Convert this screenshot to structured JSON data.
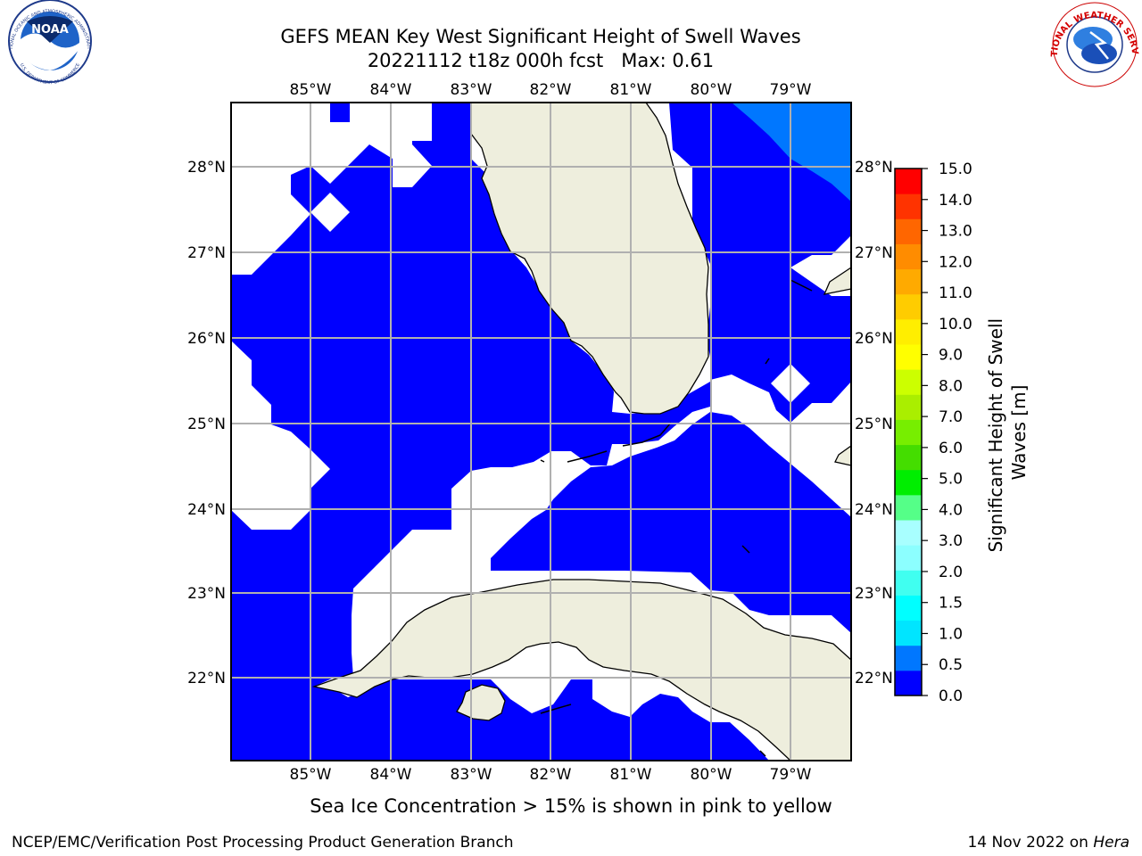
{
  "title": {
    "line1": "GEFS MEAN Key West Significant Height of Swell Waves",
    "line2": "20221112 t18z 000h fcst   Max: 0.61"
  },
  "map": {
    "lon_labels": [
      "85°W",
      "84°W",
      "83°W",
      "82°W",
      "81°W",
      "80°W",
      "79°W"
    ],
    "lat_labels": [
      "28°N",
      "27°N",
      "26°N",
      "25°N",
      "24°N",
      "23°N",
      "22°N"
    ],
    "colors": {
      "ocean": "#0000ff",
      "ocean_light": "#0077ff",
      "land": "#eeeedd",
      "mask": "#ffffff",
      "grid": "#b0b0b0",
      "coast": "#000000"
    },
    "footer_note": "Sea Ice Concentration > 15% is shown in pink to yellow"
  },
  "colorbar": {
    "label": "Significant Height of Swell Waves [m]",
    "tick_labels": [
      "0.0",
      "0.5",
      "1.0",
      "1.5",
      "2.0",
      "3.0",
      "4.0",
      "5.0",
      "6.0",
      "7.0",
      "8.0",
      "9.0",
      "10.0",
      "11.0",
      "12.0",
      "13.0",
      "14.0",
      "15.0"
    ],
    "colors": [
      "#0000ff",
      "#0077ff",
      "#00e5ff",
      "#00ffff",
      "#40fff0",
      "#8cffff",
      "#a8ffff",
      "#55ff88",
      "#00ee00",
      "#44dd00",
      "#77ee00",
      "#aaee00",
      "#ccff00",
      "#ffff00",
      "#ffee00",
      "#ffcc00",
      "#ffaa00",
      "#ff8c00",
      "#ff6600",
      "#ff3300",
      "#ff0000"
    ]
  },
  "logos": {
    "noaa_text": "NOAA",
    "noaa_ring": "NATIONAL OCEANIC AND ATMOSPHERIC ADMINISTRATION",
    "noaa_ring_bottom": "U.S. DEPARTMENT OF COMMERCE",
    "nws_ring": "NATIONAL WEATHER SERVICE"
  },
  "footer": {
    "left": "NCEP/EMC/Verification Post Processing Product Generation Branch",
    "right_date": "14 Nov 2022 on ",
    "right_machine": "Hera"
  }
}
